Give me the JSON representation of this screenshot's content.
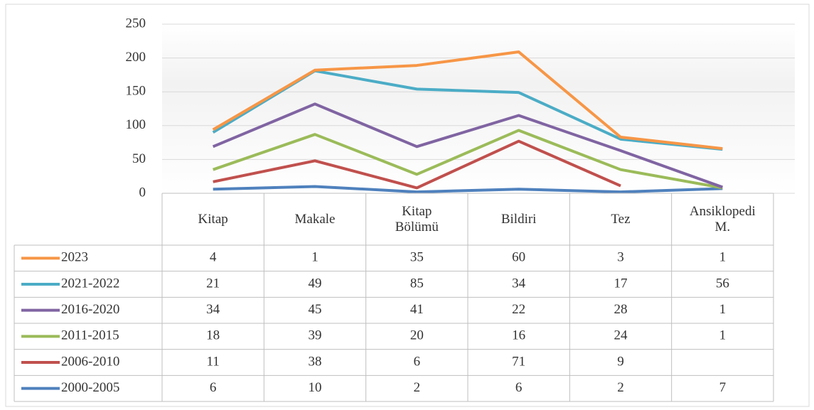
{
  "chart_data": {
    "type": "line",
    "stacked": true,
    "categories": [
      "Kitap",
      "Makale",
      "Kitap Bölümü",
      "Bildiri",
      "Tez",
      "Ansiklopedi M."
    ],
    "series": [
      {
        "name": "2023",
        "color": "#f79646",
        "values": [
          4,
          1,
          35,
          60,
          3,
          1
        ]
      },
      {
        "name": "2021-2022",
        "color": "#4bacc6",
        "values": [
          21,
          49,
          85,
          34,
          17,
          56
        ]
      },
      {
        "name": "2016-2020",
        "color": "#8064a2",
        "values": [
          34,
          45,
          41,
          22,
          28,
          1
        ]
      },
      {
        "name": "2011-2015",
        "color": "#9bbb59",
        "values": [
          18,
          39,
          20,
          16,
          24,
          1
        ]
      },
      {
        "name": "2006-2010",
        "color": "#c0504d",
        "values": [
          11,
          38,
          6,
          71,
          9,
          null
        ]
      },
      {
        "name": "2000-2005",
        "color": "#4f81bd",
        "values": [
          6,
          10,
          2,
          6,
          2,
          7
        ]
      }
    ],
    "ylim": [
      0,
      250
    ],
    "yticks": [
      0,
      50,
      100,
      150,
      200,
      250
    ],
    "grid": true,
    "data_table": true
  }
}
